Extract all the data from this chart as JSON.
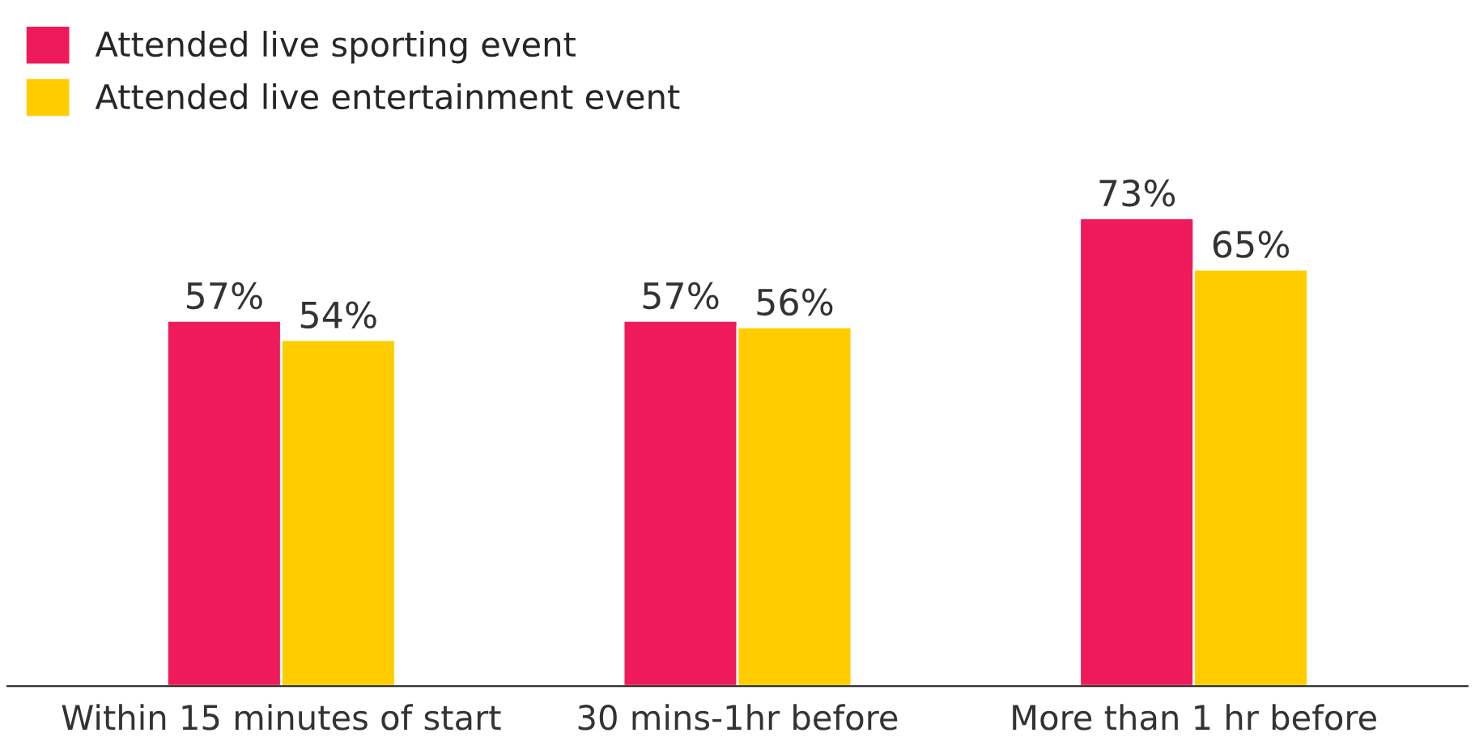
{
  "chart_data": {
    "type": "bar",
    "categories": [
      "Within 15 minutes of start",
      "30 mins-1hr before",
      "More than 1 hr before"
    ],
    "series": [
      {
        "name": "Attended live sporting event",
        "color": "#ef1a5b",
        "values": [
          57,
          57,
          73
        ],
        "value_labels": [
          "57%",
          "57%",
          "73%"
        ]
      },
      {
        "name": "Attended live entertainment event",
        "color": "#ffcc00",
        "values": [
          54,
          56,
          65
        ],
        "value_labels": [
          "54%",
          "56%",
          "65%"
        ]
      }
    ],
    "legend": "top left",
    "grid": false
  }
}
